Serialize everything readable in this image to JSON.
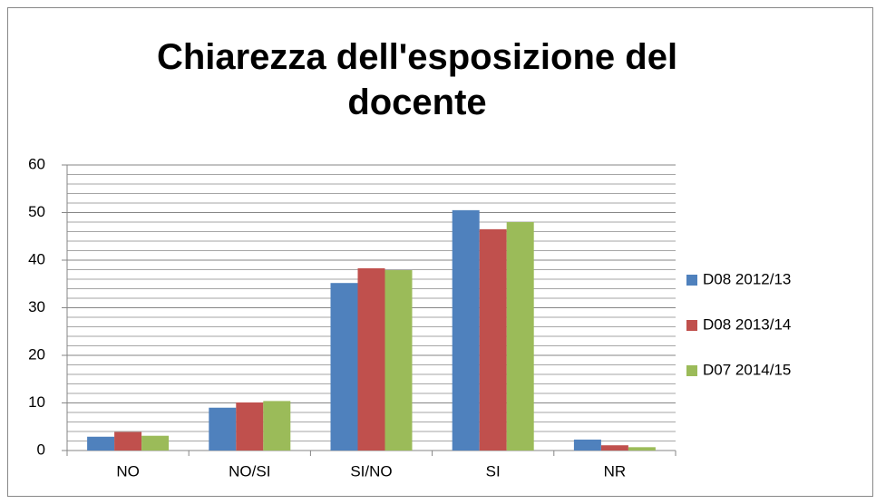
{
  "chart_data": {
    "type": "bar",
    "title": "Chiarezza dell'esposizione del docente",
    "categories": [
      "NO",
      "NO/SI",
      "SI/NO",
      "SI",
      "NR"
    ],
    "series": [
      {
        "name": "D08 2012/13",
        "color": "#4f81bd",
        "values": [
          2.9,
          9,
          35.2,
          50.5,
          2.3
        ]
      },
      {
        "name": "D08 2013/14",
        "color": "#c0504d",
        "values": [
          3.9,
          10.1,
          38.3,
          46.5,
          1.1
        ]
      },
      {
        "name": "D07 2014/15",
        "color": "#9bbb59",
        "values": [
          3.1,
          10.4,
          37.9,
          48,
          0.7
        ]
      }
    ],
    "ylim": [
      0,
      60
    ],
    "yticks": [
      0,
      10,
      20,
      30,
      40,
      50,
      60
    ],
    "minor_yticks": [
      2,
      4,
      6,
      8,
      12,
      14,
      16,
      18,
      22,
      24,
      26,
      28,
      32,
      34,
      36,
      38,
      42,
      44,
      46,
      48,
      52,
      54,
      56,
      58
    ],
    "grid": true,
    "legend": "right"
  }
}
